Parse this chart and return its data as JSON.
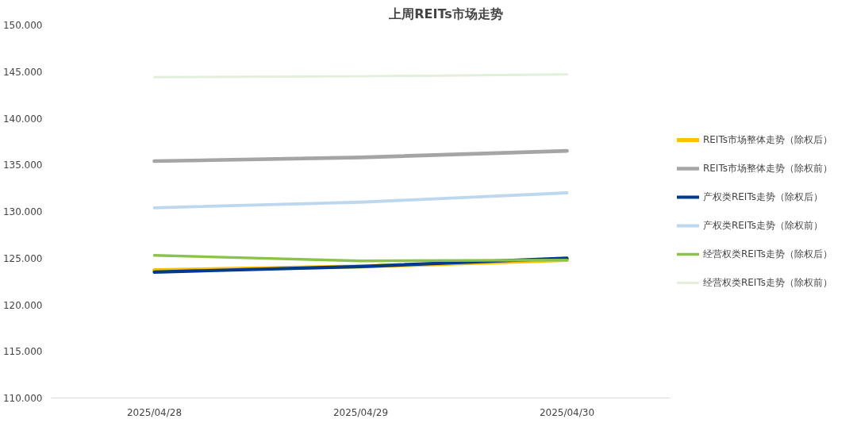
{
  "chart_data": {
    "type": "line",
    "title": "上周REITs市场走势",
    "categories": [
      "2025/04/28",
      "2025/04/29",
      "2025/04/30"
    ],
    "ylim": [
      110,
      150
    ],
    "yticks": [
      {
        "value": 110,
        "label": "110.000"
      },
      {
        "value": 115,
        "label": "115.000"
      },
      {
        "value": 120,
        "label": "120.000"
      },
      {
        "value": 125,
        "label": "125.000"
      },
      {
        "value": 130,
        "label": "130.000"
      },
      {
        "value": 135,
        "label": "135.000"
      },
      {
        "value": 140,
        "label": "140.000"
      },
      {
        "value": 145,
        "label": "145.000"
      },
      {
        "value": 150,
        "label": "150.000"
      }
    ],
    "grid": false,
    "legend": "right",
    "marker": "none",
    "line_style": "solid",
    "series": [
      {
        "name": "REITs市场整体走势（除权后）",
        "color": "#ffc000",
        "values": [
          123.7,
          124.1,
          124.8
        ]
      },
      {
        "name": "REITs市场整体走势（除权前）",
        "color": "#a5a5a5",
        "values": [
          135.4,
          135.8,
          136.5
        ]
      },
      {
        "name": "产权类REITs走势（除权后）",
        "color": "#003a8c",
        "values": [
          123.5,
          124.1,
          125.0
        ]
      },
      {
        "name": "产权类REITs走势（除权前）",
        "color": "#bdd7ee",
        "values": [
          130.4,
          131.0,
          132.0
        ]
      },
      {
        "name": "经营权类REITs走势（除权后）",
        "color": "#8bc34a",
        "values": [
          125.3,
          124.7,
          124.8
        ]
      },
      {
        "name": "经营权类REITs走势（除权前）",
        "color": "#e2efda",
        "values": [
          144.4,
          144.5,
          144.7
        ]
      }
    ]
  }
}
